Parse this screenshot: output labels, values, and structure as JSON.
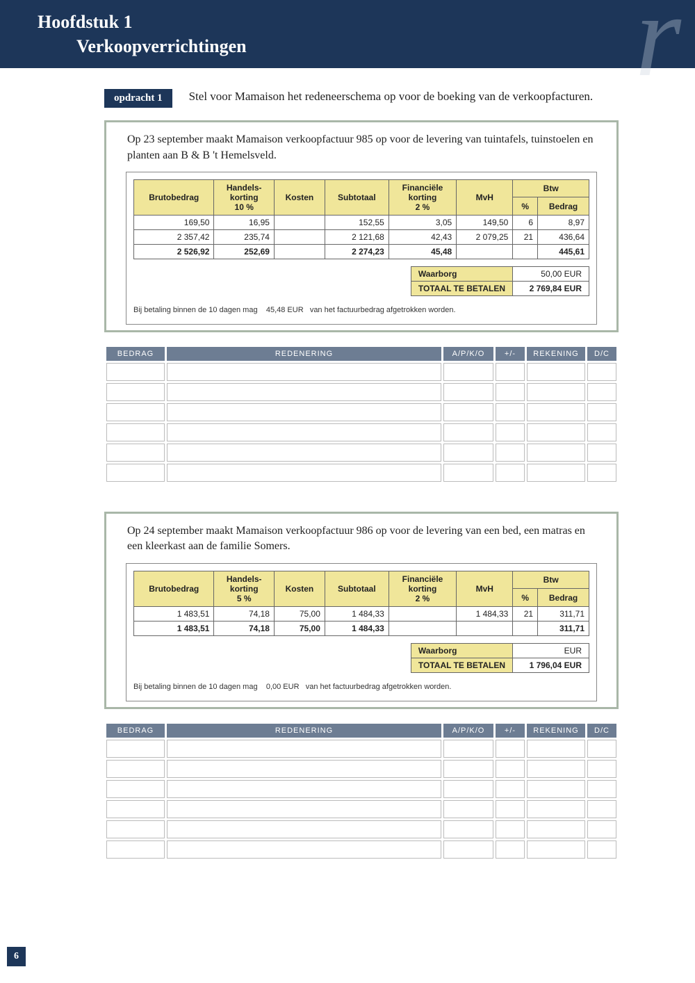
{
  "header": {
    "chapter": "Hoofdstuk 1",
    "title": "Verkoopverrichtingen"
  },
  "assignment": {
    "tag": "opdracht 1",
    "text": "Stel voor Mamaison het redeneerschema op voor de boeking van de verkoopfacturen."
  },
  "ex1": {
    "intro": "Op 23 september maakt Mamaison verkoopfactuur 985 op voor de levering van tuintafels, tuinstoelen en planten aan B & B 't Hemelsveld.",
    "columns": {
      "bruto": "Brutobedrag",
      "hk_top": "Handels-",
      "hk_mid": "korting",
      "hk_pct": "10 %",
      "kosten": "Kosten",
      "subtotaal": "Subtotaal",
      "fk_top": "Financiële",
      "fk_mid": "korting",
      "fk_pct": "2 %",
      "mvh": "MvH",
      "btw": "Btw",
      "btw_pct": "%",
      "btw_bedrag": "Bedrag"
    },
    "rows": [
      {
        "bruto": "169,50",
        "hk": "16,95",
        "kosten": "",
        "sub": "152,55",
        "fk": "3,05",
        "mvh": "149,50",
        "pct": "6",
        "bedr": "8,97"
      },
      {
        "bruto": "2 357,42",
        "hk": "235,74",
        "kosten": "",
        "sub": "2 121,68",
        "fk": "42,43",
        "mvh": "2 079,25",
        "pct": "21",
        "bedr": "436,64"
      }
    ],
    "total": {
      "bruto": "2 526,92",
      "hk": "252,69",
      "kosten": "",
      "sub": "2 274,23",
      "fk": "45,48",
      "mvh": "",
      "pct": "",
      "bedr": "445,61"
    },
    "summary": {
      "waarborg_lbl": "Waarborg",
      "waarborg_val": "50,00 EUR",
      "totaal_lbl": "TOTAAL TE BETALEN",
      "totaal_val": "2 769,84 EUR"
    },
    "footnote_a": "Bij betaling binnen de 10 dagen mag",
    "footnote_b": "45,48 EUR",
    "footnote_c": "van het factuurbedrag afgetrokken worden."
  },
  "reason_headers": {
    "c1": "Bedrag",
    "c2": "Redenering",
    "c3": "A/P/K/O",
    "c4": "+/-",
    "c5": "Rekening",
    "c6": "D/C"
  },
  "ex2": {
    "intro": "Op 24 september maakt Mamaison verkoopfactuur 986 op voor de levering van een bed, een matras en een kleerkast aan de familie Somers.",
    "columns": {
      "bruto": "Brutobedrag",
      "hk_top": "Handels-",
      "hk_mid": "korting",
      "hk_pct": "5 %",
      "kosten": "Kosten",
      "subtotaal": "Subtotaal",
      "fk_top": "Financiële",
      "fk_mid": "korting",
      "fk_pct": "2 %",
      "mvh": "MvH",
      "btw": "Btw",
      "btw_pct": "%",
      "btw_bedrag": "Bedrag"
    },
    "rows": [
      {
        "bruto": "1 483,51",
        "hk": "74,18",
        "kosten": "75,00",
        "sub": "1 484,33",
        "fk": "",
        "mvh": "1 484,33",
        "pct": "21",
        "bedr": "311,71"
      }
    ],
    "total": {
      "bruto": "1 483,51",
      "hk": "74,18",
      "kosten": "75,00",
      "sub": "1 484,33",
      "fk": "",
      "mvh": "",
      "pct": "",
      "bedr": "311,71"
    },
    "summary": {
      "waarborg_lbl": "Waarborg",
      "waarborg_val": "EUR",
      "totaal_lbl": "TOTAAL TE BETALEN",
      "totaal_val": "1 796,04 EUR"
    },
    "footnote_a": "Bij betaling binnen de 10 dagen mag",
    "footnote_b": "0,00 EUR",
    "footnote_c": "van het factuurbedrag afgetrokken worden."
  },
  "page_number": "6"
}
